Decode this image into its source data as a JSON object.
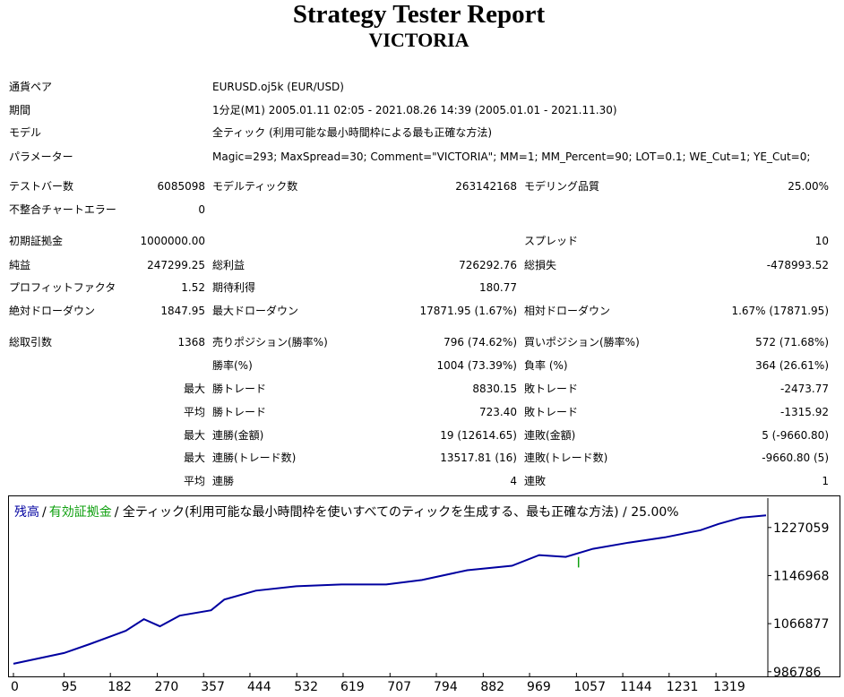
{
  "header": {
    "title": "Strategy Tester Report",
    "subtitle": "VICTORIA"
  },
  "info": [
    [
      "通貨ペア",
      "EURUSD.oj5k (EUR/USD)"
    ],
    [
      "期間",
      "1分足(M1) 2005.01.11 02:05 - 2021.08.26 14:39 (2005.01.01 - 2021.11.30)"
    ],
    [
      "モデル",
      "全ティック (利用可能な最小時間枠による最も正確な方法)"
    ],
    [
      "パラメーター",
      "Magic=293; MaxSpread=30; Comment=\"VICTORIA\"; MM=1; MM_Percent=90; LOT=0.1; WE_Cut=1; YE_Cut=0;"
    ]
  ],
  "stats": [
    [
      "テストバー数",
      "6085098",
      "モデルティック数",
      "263142168",
      "モデリング品質",
      "25.00%"
    ],
    [
      "不整合チャートエラー",
      "0"
    ],
    [
      "初期証拠金",
      "1000000.00",
      null,
      null,
      "スプレッド",
      "10"
    ],
    [
      "純益",
      "247299.25",
      "総利益",
      "726292.76",
      "総損失",
      "-478993.52"
    ],
    [
      "プロフィットファクタ",
      "1.52",
      "期待利得",
      "180.77"
    ],
    [
      "絶対ドローダウン",
      "1847.95",
      "最大ドローダウン",
      "17871.95 (1.67%)",
      "相対ドローダウン",
      "1.67% (17871.95)"
    ],
    [
      "総取引数",
      "1368",
      "売りポジション(勝率%)",
      "796 (74.62%)",
      "買いポジション(勝率%)",
      "572 (71.68%)"
    ],
    [
      null,
      null,
      "勝率(%)",
      "1004 (73.39%)",
      "負率 (%)",
      "364 (26.61%)"
    ],
    [
      null,
      "最大",
      "勝トレード",
      "8830.15",
      "敗トレード",
      "-2473.77"
    ],
    [
      null,
      "平均",
      "勝トレード",
      "723.40",
      "敗トレード",
      "-1315.92"
    ],
    [
      null,
      "最大",
      "連勝(金額)",
      "19 (12614.65)",
      "連敗(金額)",
      "5 (-9660.80)"
    ],
    [
      null,
      "最大",
      "連勝(トレード数)",
      "13517.81 (16)",
      "連敗(トレード数)",
      "-9660.80 (5)"
    ],
    [
      null,
      "平均",
      "連勝",
      "4",
      "連敗",
      "1"
    ]
  ],
  "chart_data": {
    "type": "line",
    "separator": "/",
    "note": "/ 全ティック(利用可能な最小時間枠を使いすべてのティックを生成する、最も正確な方法) / 25.00%",
    "xlim": [
      0,
      1413
    ],
    "ylim": [
      979000,
      1276000
    ],
    "xticks": [
      0,
      95,
      182,
      270,
      357,
      444,
      532,
      619,
      707,
      794,
      882,
      969,
      1057,
      1144,
      1231,
      1319
    ],
    "yticks": [
      986786,
      1066877,
      1146968,
      1227059
    ],
    "series": [
      {
        "name": "残高",
        "color": "#0000a0",
        "x": [
          0,
          95,
          143,
          211,
          245,
          275,
          312,
          371,
          396,
          455,
          531,
          616,
          700,
          767,
          852,
          936,
          987,
          1037,
          1088,
          1155,
          1223,
          1290,
          1324,
          1366,
          1413
        ],
        "values": [
          1000000,
          1018000,
          1032800,
          1055000,
          1074300,
          1062400,
          1080200,
          1089100,
          1107000,
          1121800,
          1129200,
          1132100,
          1132100,
          1139600,
          1155900,
          1163300,
          1181100,
          1178100,
          1191500,
          1201800,
          1210700,
          1222600,
          1233000,
          1243400,
          1247300
        ]
      },
      {
        "name": "有効証拠金",
        "color": "#10a010",
        "x": [
          1061,
          1061
        ],
        "values": [
          1178000,
          1160500
        ]
      }
    ]
  }
}
